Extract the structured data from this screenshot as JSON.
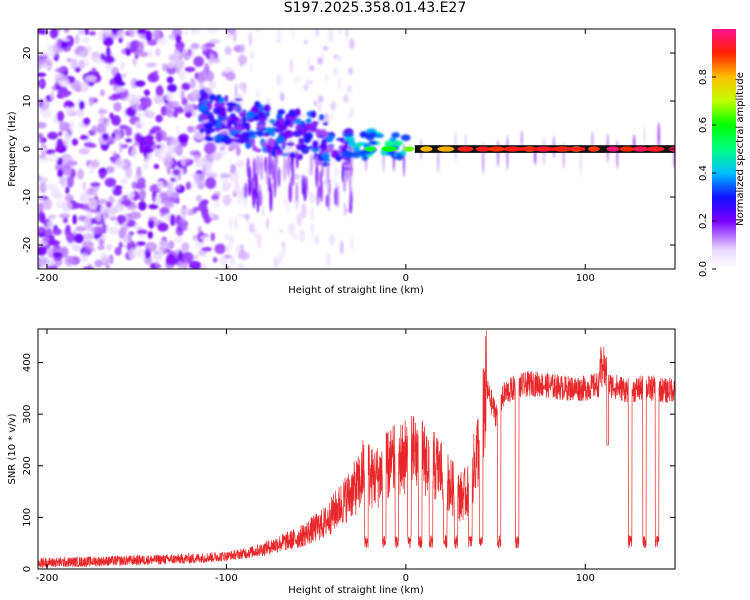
{
  "title": "S197.2025.358.01.43.E27",
  "colors": {
    "axis": "#000000",
    "snr_line": "#e8272a",
    "background": "#ffffff"
  },
  "chart_data": [
    {
      "type": "heatmap",
      "title": "S197.2025.358.01.43.E27",
      "xlabel": "Height of straight line (km)",
      "ylabel": "Frequency (Hz)",
      "xlim": [
        -205,
        150
      ],
      "ylim": [
        -25,
        25
      ],
      "xticks": [
        -200,
        -100,
        0,
        100
      ],
      "yticks": [
        -20,
        -10,
        0,
        10,
        20
      ],
      "colorbar": {
        "label": "Normalized spectral amplitude",
        "range": [
          0,
          1
        ],
        "ticks": [
          "0.0",
          "0.2",
          "0.4",
          "0.6",
          "0.8"
        ],
        "tick_values": [
          0.0,
          0.2,
          0.4,
          0.6,
          0.8
        ]
      },
      "features": {
        "noise_region_x": [
          -205,
          -100
        ],
        "transition_region_x": [
          -100,
          -30
        ],
        "tone_line_start_x": -30,
        "tone_line_frequency": 0,
        "tone_line_amplitude": 1.0
      }
    },
    {
      "type": "line",
      "xlabel": "Height of straight line (km)",
      "ylabel": "SNR (10 * v/v)",
      "xlim": [
        -205,
        150
      ],
      "ylim": [
        0,
        465
      ],
      "xticks": [
        -200,
        -100,
        0,
        100
      ],
      "yticks": [
        0,
        100,
        200,
        300,
        400
      ],
      "series": [
        {
          "name": "SNR",
          "x": [
            -205,
            -180,
            -160,
            -140,
            -120,
            -100,
            -90,
            -80,
            -70,
            -60,
            -55,
            -50,
            -45,
            -40,
            -35,
            -30,
            -25,
            -22,
            -20,
            -15,
            -10,
            -5,
            0,
            5,
            10,
            15,
            20,
            25,
            30,
            35,
            40,
            45,
            50,
            55,
            60,
            65,
            70,
            80,
            90,
            100,
            110,
            120,
            125,
            130,
            135,
            140,
            145,
            150
          ],
          "values": [
            12,
            14,
            16,
            18,
            20,
            25,
            30,
            38,
            50,
            60,
            70,
            80,
            90,
            110,
            130,
            150,
            170,
            220,
            175,
            180,
            200,
            210,
            220,
            225,
            215,
            200,
            190,
            160,
            140,
            150,
            230,
            350,
            300,
            340,
            350,
            355,
            360,
            355,
            350,
            350,
            360,
            350,
            345,
            350,
            350,
            350,
            345,
            350
          ]
        }
      ],
      "dips_x": [
        -22,
        -12,
        -5,
        2,
        8,
        14,
        22,
        28,
        36,
        42,
        52,
        62,
        125,
        133,
        140
      ]
    }
  ]
}
